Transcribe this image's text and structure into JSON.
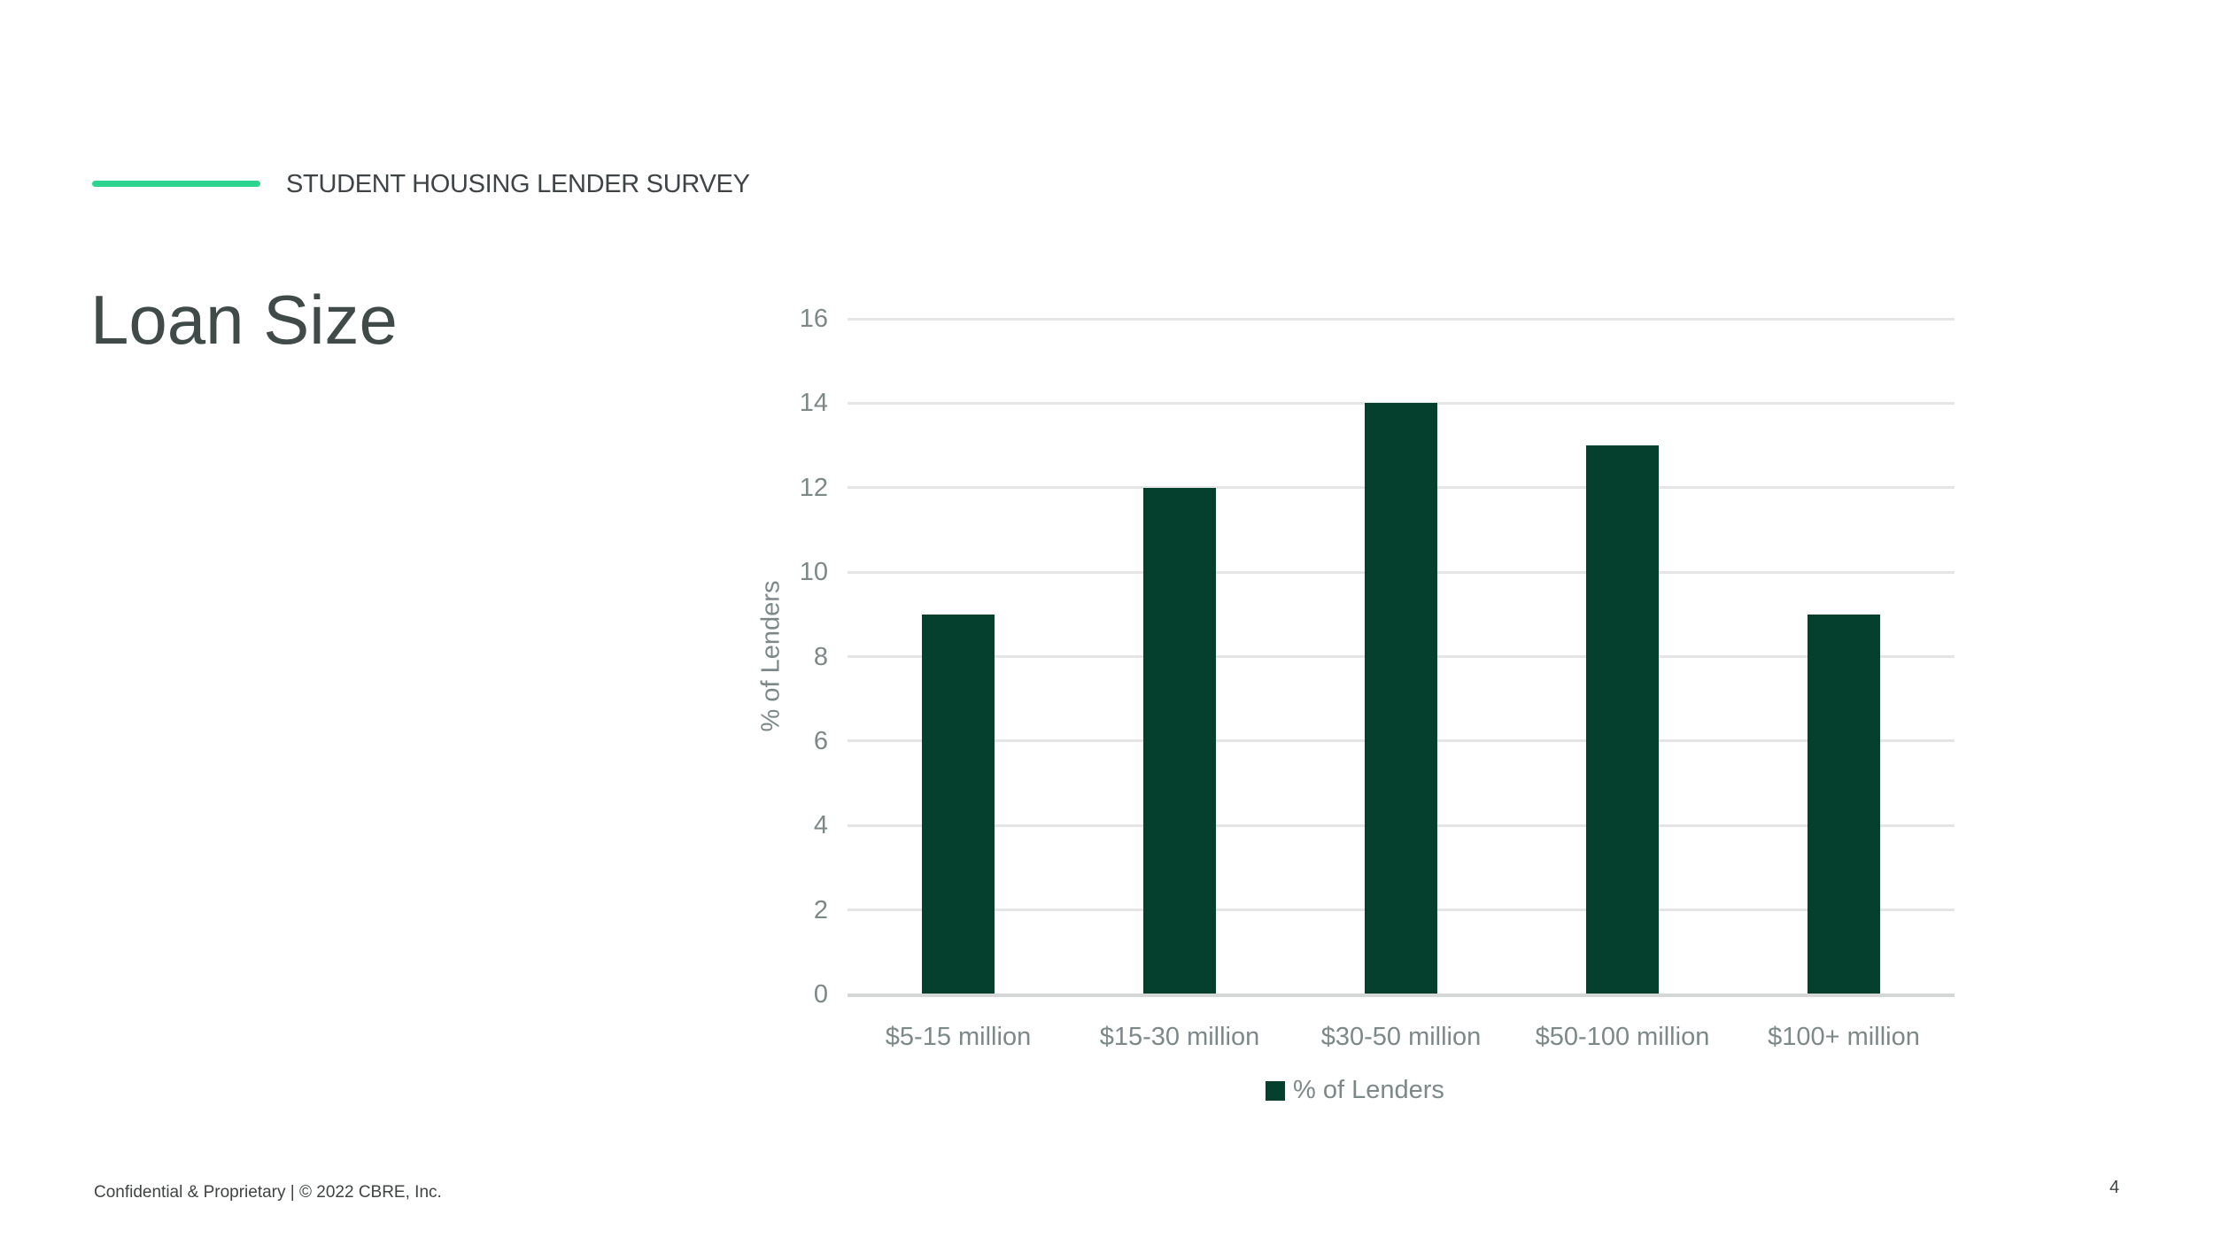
{
  "slide": {
    "kicker": "STUDENT HOUSING LENDER SURVEY",
    "title": "Loan Size",
    "footer": {
      "left": "Confidential & Proprietary | © 2022 CBRE, Inc.",
      "page_number": "4"
    }
  },
  "colors": {
    "accent_green": "#2bd48f",
    "bar_green": "#053f2e",
    "title_gray": "#404a48",
    "axis_text_gray": "#7d8889",
    "gridline_gray": "#e4e5e5",
    "axis_line_gray": "#d5d7d7"
  },
  "chart_data": {
    "type": "bar",
    "title": "",
    "categories": [
      "$5-15 million",
      "$15-30 million",
      "$30-50 million",
      "$50-100 million",
      "$100+ million"
    ],
    "series": [
      {
        "name": "% of Lenders",
        "values": [
          9,
          12,
          14,
          13,
          9
        ]
      }
    ],
    "xlabel": "",
    "ylabel": "% of Lenders",
    "ylim": [
      0,
      16
    ],
    "ytick_step": 2,
    "yticks": [
      0,
      2,
      4,
      6,
      8,
      10,
      12,
      14,
      16
    ],
    "grid": "horizontal",
    "legend_position": "bottom"
  }
}
